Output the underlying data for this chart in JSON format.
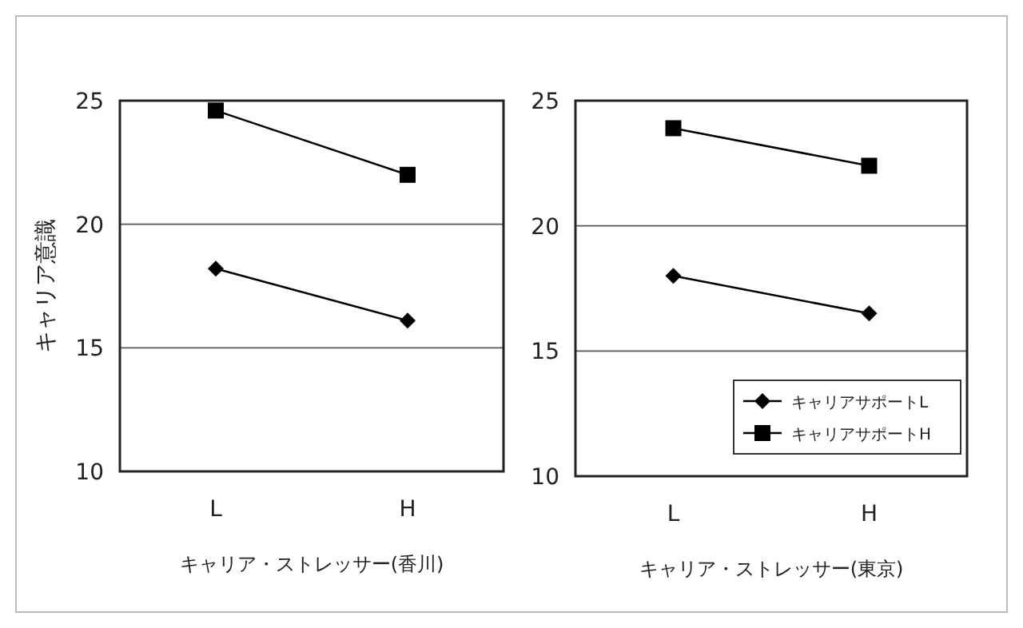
{
  "chart_data": [
    {
      "type": "line",
      "ylabel": "キャリア意識",
      "xlabel": "キャリア・ストレッサー(香川)",
      "categories": [
        "L",
        "H"
      ],
      "series": [
        {
          "color": "#000000",
          "marker": "diamond",
          "values": [
            18.2,
            16.1
          ]
        },
        {
          "color": "#000000",
          "marker": "square",
          "values": [
            24.6,
            22.0
          ]
        }
      ],
      "ylim": [
        10,
        25
      ],
      "yticks": [
        10,
        15,
        20,
        25
      ],
      "grid": "y",
      "legend": false
    },
    {
      "type": "line",
      "xlabel": "キャリア・ストレッサー(東京)",
      "categories": [
        "L",
        "H"
      ],
      "series": [
        {
          "name": "キャリアサポートL",
          "color": "#000000",
          "marker": "diamond",
          "values": [
            18.0,
            16.5
          ]
        },
        {
          "name": "キャリアサポートH",
          "color": "#000000",
          "marker": "square",
          "values": [
            23.9,
            22.4
          ]
        }
      ],
      "ylim": [
        10,
        25
      ],
      "yticks": [
        10,
        15,
        20,
        25
      ],
      "grid": "y",
      "legend": "bottom right"
    }
  ]
}
